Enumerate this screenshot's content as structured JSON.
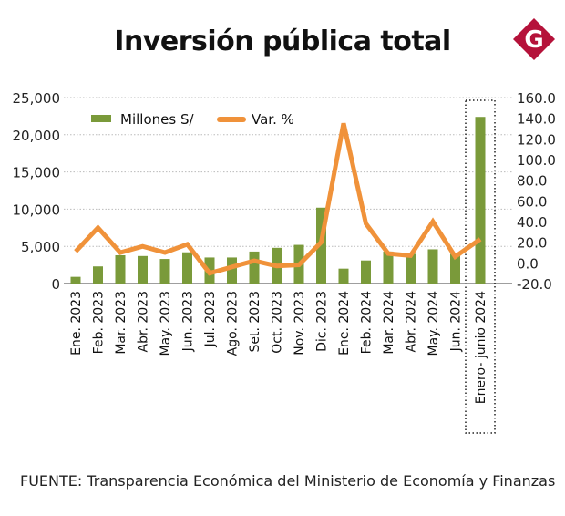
{
  "title": "Inversión pública total",
  "logo_text": "G",
  "source": "FUENTE: Transparencia Económica del Ministerio de Economía y Finanzas",
  "colors": {
    "bar": "#7a9a3a",
    "line": "#f0923a",
    "logo": "#b5123a"
  },
  "chart_data": {
    "type": "bar+line",
    "categories": [
      "Ene. 2023",
      "Feb. 2023",
      "Mar. 2023",
      "Abr. 2023",
      "May. 2023",
      "Jun. 2023",
      "Jul. 2023",
      "Ago. 2023",
      "Set. 2023",
      "Oct. 2023",
      "Nov. 2023",
      "Dic. 2023",
      "Ene. 2024",
      "Feb. 2024",
      "Mar. 2024",
      "Abr. 2024",
      "May. 2024",
      "Jun. 2024",
      "Enero- junio 2024"
    ],
    "series": [
      {
        "name": "Millones S/",
        "type": "bar",
        "axis": "left",
        "values": [
          900,
          2300,
          3800,
          3700,
          3300,
          4200,
          3500,
          3500,
          4300,
          4800,
          5200,
          10200,
          2000,
          3100,
          4300,
          4000,
          4600,
          4000,
          22400
        ]
      },
      {
        "name": "Var. %",
        "type": "line",
        "axis": "right",
        "values": [
          11,
          34,
          10,
          16,
          10,
          18,
          -10,
          -4,
          2,
          -3,
          -2,
          20,
          135,
          38,
          9,
          7,
          40,
          6,
          23
        ]
      }
    ],
    "left_axis": {
      "ylim": [
        0,
        25000
      ],
      "ticks": [
        "0",
        "5,000",
        "10,000",
        "15,000",
        "20,000",
        "25,000"
      ]
    },
    "right_axis": {
      "ylim": [
        -20,
        160
      ],
      "ticks": [
        "-20.0",
        "0.0",
        "20.0",
        "40.0",
        "60.0",
        "80.0",
        "100.0",
        "120.0",
        "140.0",
        "160.0"
      ]
    },
    "legend": "top-left",
    "grid": true
  }
}
